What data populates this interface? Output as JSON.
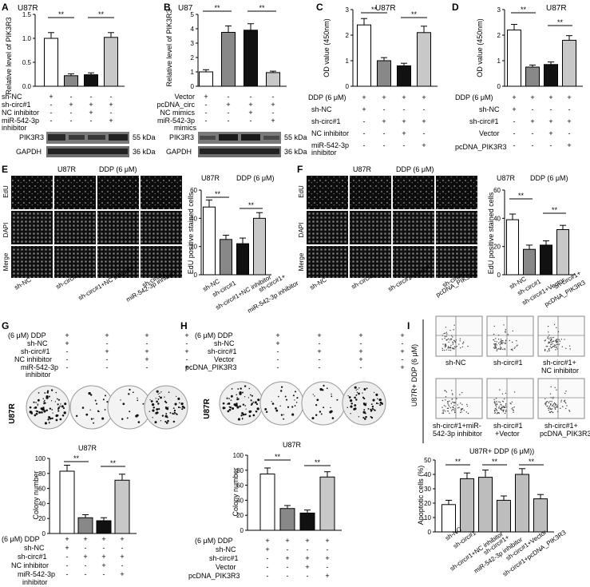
{
  "panels": {
    "A": {
      "letter": "A",
      "title": "U87R",
      "ylabel": "Relative level of PIK3R3",
      "rows": [
        "sh-NC",
        "sh-circ#1",
        "NC inhibitor",
        "miR-542-3p",
        "inhibitor"
      ],
      "blot1": "PIK3R3",
      "blot2": "GAPDH",
      "kda1": "55 kDa",
      "kda2": "36 kDa"
    },
    "B": {
      "letter": "B",
      "title": "U87",
      "ylabel": "Relative level of PIK3R3",
      "rows": [
        "Vector",
        "pcDNA_circ",
        "NC mimics",
        "miR-542-3p",
        "mimics"
      ],
      "blot1": "PIK3R3",
      "blot2": "GAPDH",
      "kda1": "55 kDa",
      "kda2": "36 kDa"
    },
    "C": {
      "letter": "C",
      "title": "U87R",
      "ylabel": "OD value (450nm)",
      "rows": [
        "DDP (6 μM)",
        "sh-NC",
        "sh-circ#1",
        "NC inhibitor",
        "miR-542-3p",
        "inhibitor"
      ]
    },
    "D": {
      "letter": "D",
      "title": "U87R",
      "ylabel": "OD value (450nm)",
      "rows": [
        "DDP (6 μM)",
        "sh-NC",
        "sh-circ#1",
        "Vector",
        "pcDNA_PIK3R3"
      ]
    },
    "E": {
      "letter": "E",
      "title": "U87R",
      "ddp": "DDP (6 μM)",
      "rows": [
        "EdU",
        "DAPI",
        "Merge"
      ],
      "cols": [
        "sh-NC",
        "sh-circ#1",
        "sh-circ#1+NC inhibitor",
        "sh-circ#1+",
        "miR-542-3p inhibitor"
      ],
      "ylabel": "EdU positive stained cells",
      "xlabels": [
        "sh-NC",
        "sh-circ#1",
        "sh-circ#1+NC inhibitor",
        "sh-circ#1+",
        "miR-542-3p inhibitor"
      ]
    },
    "F": {
      "letter": "F",
      "title": "U87R",
      "ddp": "DDP (6 μM)",
      "rows": [
        "EdU",
        "DAPI",
        "Merge"
      ],
      "cols": [
        "sh-NC",
        "sh-circ#1",
        "sh-circ#1+Vector",
        "sh-circ#1+",
        "pcDNA_PIK3R3"
      ],
      "ylabel": "EdU positive stained cells",
      "xlabels": [
        "sh-NC",
        "sh-circ#1",
        "sh-circ#1+Vector",
        "sh-circ#1+",
        "pcDNA_PIK3R3"
      ]
    },
    "G": {
      "letter": "G",
      "rows": [
        "(6 μM) DDP",
        "sh-NC",
        "sh-circ#1",
        "NC inhibitor",
        "miR-542-3p",
        "inhibitor"
      ],
      "side": "U87R",
      "title": "U87R",
      "ylabel": "Colony number"
    },
    "H": {
      "letter": "H",
      "rows": [
        "(6 μM) DDP",
        "sh-NC",
        "sh-circ#1",
        "Vector",
        "pcDNA_PIK3R3"
      ],
      "side": "U87R",
      "title": "U87R",
      "ylabel": "Colony number"
    },
    "I": {
      "letter": "I",
      "side": "U87R+ DDP (6 μM)",
      "cells": [
        "sh-NC",
        "sh-circ#1",
        "sh-circ#1+",
        "NC inhibitor",
        "sh-circ#1+miR-",
        "542-3p inhibitor",
        "sh-circ#1",
        "+Vector",
        "sh-circ#1+",
        "pcDNA_PIK3R3"
      ],
      "title": "U87R+ DDP (6 μM))",
      "ylabel": "Apoptotic cells (%)",
      "xlabels": [
        "sh-NC",
        "sh-circ#1",
        "sh-circ#1+NC inhibitor",
        "sh-circ#1+",
        "miR-542-3p inhibitor",
        "sh-circ#1+Vector",
        "sh-circ#1+pcDNA_PIK3R3"
      ]
    }
  },
  "sig": "**",
  "chart_data": [
    {
      "id": "A",
      "type": "bar",
      "title": "U87R",
      "ylabel": "Relative level of PIK3R3",
      "ylim": [
        0,
        1.5
      ],
      "ticks": [
        "0.0",
        "0.5",
        "1.0",
        "1.5"
      ],
      "values": [
        1.0,
        0.22,
        0.24,
        1.02
      ],
      "errors": [
        0.12,
        0.04,
        0.04,
        0.1
      ]
    },
    {
      "id": "B",
      "type": "bar",
      "title": "U87",
      "ylabel": "Relative level of PIK3R3",
      "ylim": [
        0,
        5
      ],
      "ticks": [
        "0",
        "1",
        "2",
        "3",
        "4",
        "5"
      ],
      "values": [
        1.0,
        3.75,
        3.9,
        0.95
      ],
      "errors": [
        0.15,
        0.45,
        0.45,
        0.1
      ]
    },
    {
      "id": "C",
      "type": "bar",
      "title": "U87R",
      "ylabel": "OD value (450nm)",
      "ylim": [
        0,
        3
      ],
      "ticks": [
        "0",
        "1",
        "2",
        "3"
      ],
      "values": [
        2.4,
        1.0,
        0.8,
        2.1
      ],
      "errors": [
        0.25,
        0.12,
        0.1,
        0.25
      ]
    },
    {
      "id": "D",
      "type": "bar",
      "title": "U87R",
      "ylabel": "OD value (450nm)",
      "ylim": [
        0,
        3
      ],
      "ticks": [
        "0",
        "1",
        "2",
        "3"
      ],
      "values": [
        2.2,
        0.75,
        0.85,
        1.8
      ],
      "errors": [
        0.22,
        0.08,
        0.1,
        0.18
      ]
    },
    {
      "id": "E",
      "type": "bar",
      "ylabel": "EdU positive stained cells",
      "ylim": [
        0,
        60
      ],
      "ticks": [
        "0",
        "20",
        "40",
        "60"
      ],
      "values": [
        48,
        25,
        22,
        40
      ],
      "errors": [
        5,
        3,
        4,
        4
      ]
    },
    {
      "id": "F",
      "type": "bar",
      "ylabel": "EdU positive stained cells",
      "ylim": [
        0,
        60
      ],
      "ticks": [
        "0",
        "20",
        "40",
        "60"
      ],
      "values": [
        39,
        18,
        21,
        32
      ],
      "errors": [
        4,
        3,
        3,
        3
      ]
    },
    {
      "id": "G",
      "type": "bar",
      "title": "U87R",
      "ylabel": "Colony number",
      "ylim": [
        0,
        100
      ],
      "ticks": [
        "0",
        "20",
        "40",
        "60",
        "80",
        "100"
      ],
      "values": [
        83,
        21,
        17,
        71
      ],
      "errors": [
        8,
        4,
        4,
        8
      ]
    },
    {
      "id": "H",
      "type": "bar",
      "title": "U87R",
      "ylabel": "Colony number",
      "ylim": [
        0,
        100
      ],
      "ticks": [
        "0",
        "20",
        "40",
        "60",
        "80",
        "100"
      ],
      "values": [
        75,
        29,
        23,
        71
      ],
      "errors": [
        8,
        4,
        4,
        7
      ]
    },
    {
      "id": "I",
      "type": "bar",
      "title": "U87R+ DDP (6 μM))",
      "ylabel": "Apoptotic cells (%)",
      "ylim": [
        0,
        50
      ],
      "ticks": [
        "0",
        "10",
        "20",
        "30",
        "40",
        "50"
      ],
      "values": [
        19,
        37,
        38,
        22,
        40,
        23
      ],
      "errors": [
        3,
        4,
        5,
        3,
        4,
        3
      ]
    }
  ],
  "matrices": {
    "A": [
      [
        "+",
        "-",
        "-",
        "-"
      ],
      [
        "-",
        "+",
        "+",
        "+"
      ],
      [
        "-",
        "-",
        "+",
        "-"
      ],
      [
        "-",
        "-",
        "-",
        "+"
      ]
    ],
    "B": [
      [
        "+",
        "-",
        "-",
        "-"
      ],
      [
        "-",
        "+",
        "+",
        "+"
      ],
      [
        "-",
        "-",
        "+",
        "-"
      ],
      [
        "-",
        "-",
        "-",
        "+"
      ]
    ],
    "C": [
      [
        "+",
        "+",
        "+",
        "+"
      ],
      [
        "+",
        "-",
        "-",
        "-"
      ],
      [
        "-",
        "+",
        "+",
        "+"
      ],
      [
        "-",
        "-",
        "+",
        "-"
      ],
      [
        "-",
        "-",
        "-",
        "+"
      ]
    ],
    "D": [
      [
        "+",
        "+",
        "+",
        "+"
      ],
      [
        "+",
        "-",
        "-",
        "-"
      ],
      [
        "-",
        "+",
        "+",
        "+"
      ],
      [
        "-",
        "-",
        "+",
        "-"
      ],
      [
        "-",
        "-",
        "-",
        "+"
      ]
    ],
    "G": [
      [
        "+",
        "+",
        "+",
        "+"
      ],
      [
        "+",
        "-",
        "-",
        "-"
      ],
      [
        "-",
        "+",
        "+",
        "+"
      ],
      [
        "-",
        "-",
        "+",
        "-"
      ],
      [
        "-",
        "-",
        "-",
        "+"
      ]
    ],
    "H": [
      [
        "+",
        "+",
        "+",
        "+"
      ],
      [
        "+",
        "-",
        "-",
        "-"
      ],
      [
        "-",
        "+",
        "+",
        "+"
      ],
      [
        "-",
        "-",
        "+",
        "-"
      ],
      [
        "-",
        "-",
        "-",
        "+"
      ]
    ]
  },
  "colors": {
    "bar_white": "#ffffff",
    "bar_gray": "#888888",
    "bar_black": "#111111",
    "bar_light": "#c8c8c8",
    "bar_mid": "#bdbdbd"
  }
}
